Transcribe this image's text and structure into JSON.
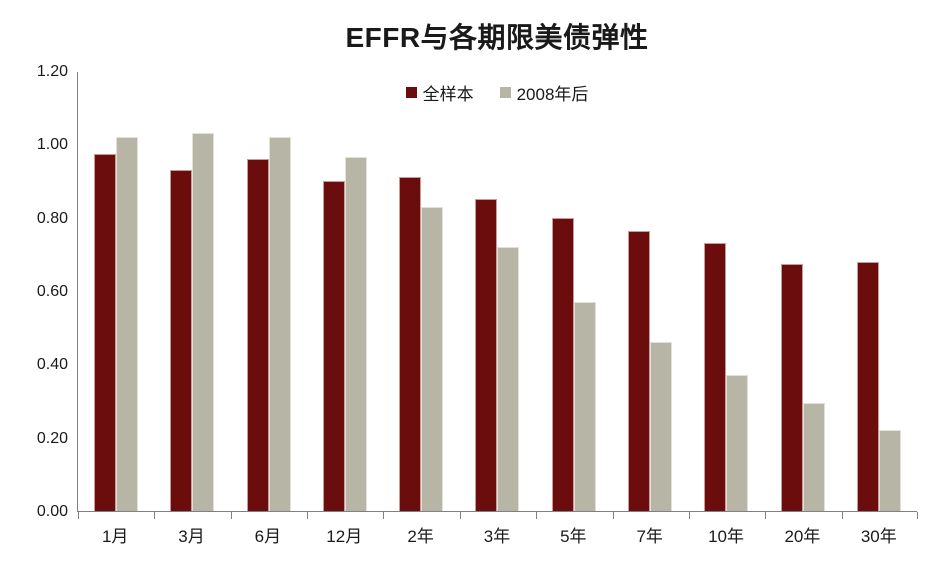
{
  "colors": {
    "series1": "#6b0d0d",
    "series2": "#b6b5a6",
    "axis": "#808080",
    "text": "#1a1a1a"
  },
  "chart_data": {
    "type": "bar",
    "title": "EFFR与各期限美债弹性",
    "xlabel": "",
    "ylabel": "",
    "categories": [
      "1月",
      "3月",
      "6月",
      "12月",
      "2年",
      "3年",
      "5年",
      "7年",
      "10年",
      "20年",
      "30年"
    ],
    "series": [
      {
        "name": "全样本",
        "color": "#6b0d0d",
        "values": [
          0.975,
          0.93,
          0.96,
          0.9,
          0.91,
          0.85,
          0.8,
          0.765,
          0.73,
          0.675,
          0.68
        ]
      },
      {
        "name": "2008年后",
        "color": "#b6b5a6",
        "values": [
          1.02,
          1.03,
          1.02,
          0.965,
          0.83,
          0.72,
          0.57,
          0.46,
          0.37,
          0.295,
          0.22
        ]
      }
    ],
    "ylim": [
      0.0,
      1.2
    ],
    "yticks": [
      0.0,
      0.2,
      0.4,
      0.6,
      0.8,
      1.0,
      1.2
    ],
    "ytick_labels": [
      "0.00",
      "0.20",
      "0.40",
      "0.60",
      "0.80",
      "1.00",
      "1.20"
    ],
    "grid": false,
    "legend_position": "top-center"
  }
}
